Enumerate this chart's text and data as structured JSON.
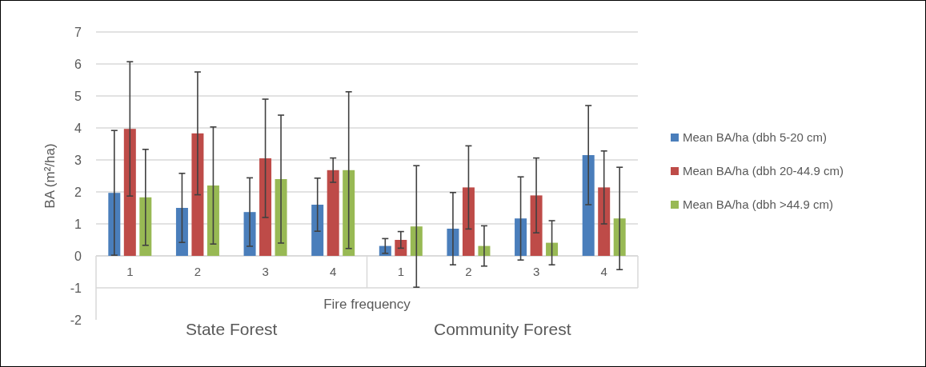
{
  "chart_data": {
    "type": "bar",
    "ylabel": "BA (m²/ha)",
    "xlabel": "Fire frequency",
    "categories": [
      "1",
      "2",
      "3",
      "4",
      "1",
      "2",
      "3",
      "4"
    ],
    "series": [
      {
        "name": "Mean BA/ha (dbh 5-20 cm)",
        "color": "#4a7ebb",
        "values": [
          1.97,
          1.5,
          1.37,
          1.6,
          0.31,
          0.85,
          1.17,
          3.15
        ],
        "errors": [
          1.95,
          1.08,
          1.07,
          0.83,
          0.23,
          1.13,
          1.3,
          1.55
        ]
      },
      {
        "name": "Mean BA/ha (dbh 20-44.9 cm)",
        "color": "#be4b48",
        "values": [
          3.97,
          3.83,
          3.05,
          2.68,
          0.5,
          2.14,
          1.89,
          2.14
        ],
        "errors": [
          2.1,
          1.92,
          1.85,
          0.38,
          0.26,
          1.3,
          1.17,
          1.14
        ]
      },
      {
        "name": "Mean BA/ha (dbh >44.9 cm)",
        "color": "#98b954",
        "values": [
          1.83,
          2.2,
          2.4,
          2.68,
          0.92,
          0.31,
          0.41,
          1.17
        ],
        "errors": [
          1.5,
          1.83,
          2.0,
          2.45,
          1.9,
          0.63,
          0.69,
          1.6
        ]
      }
    ],
    "annotations": [
      "State Forest",
      "Community Forest"
    ],
    "ylim": [
      -2,
      7
    ],
    "yticks": [
      -2,
      -1,
      0,
      1,
      2,
      3,
      4,
      5,
      6,
      7
    ],
    "grid": "y",
    "legend": "right"
  }
}
